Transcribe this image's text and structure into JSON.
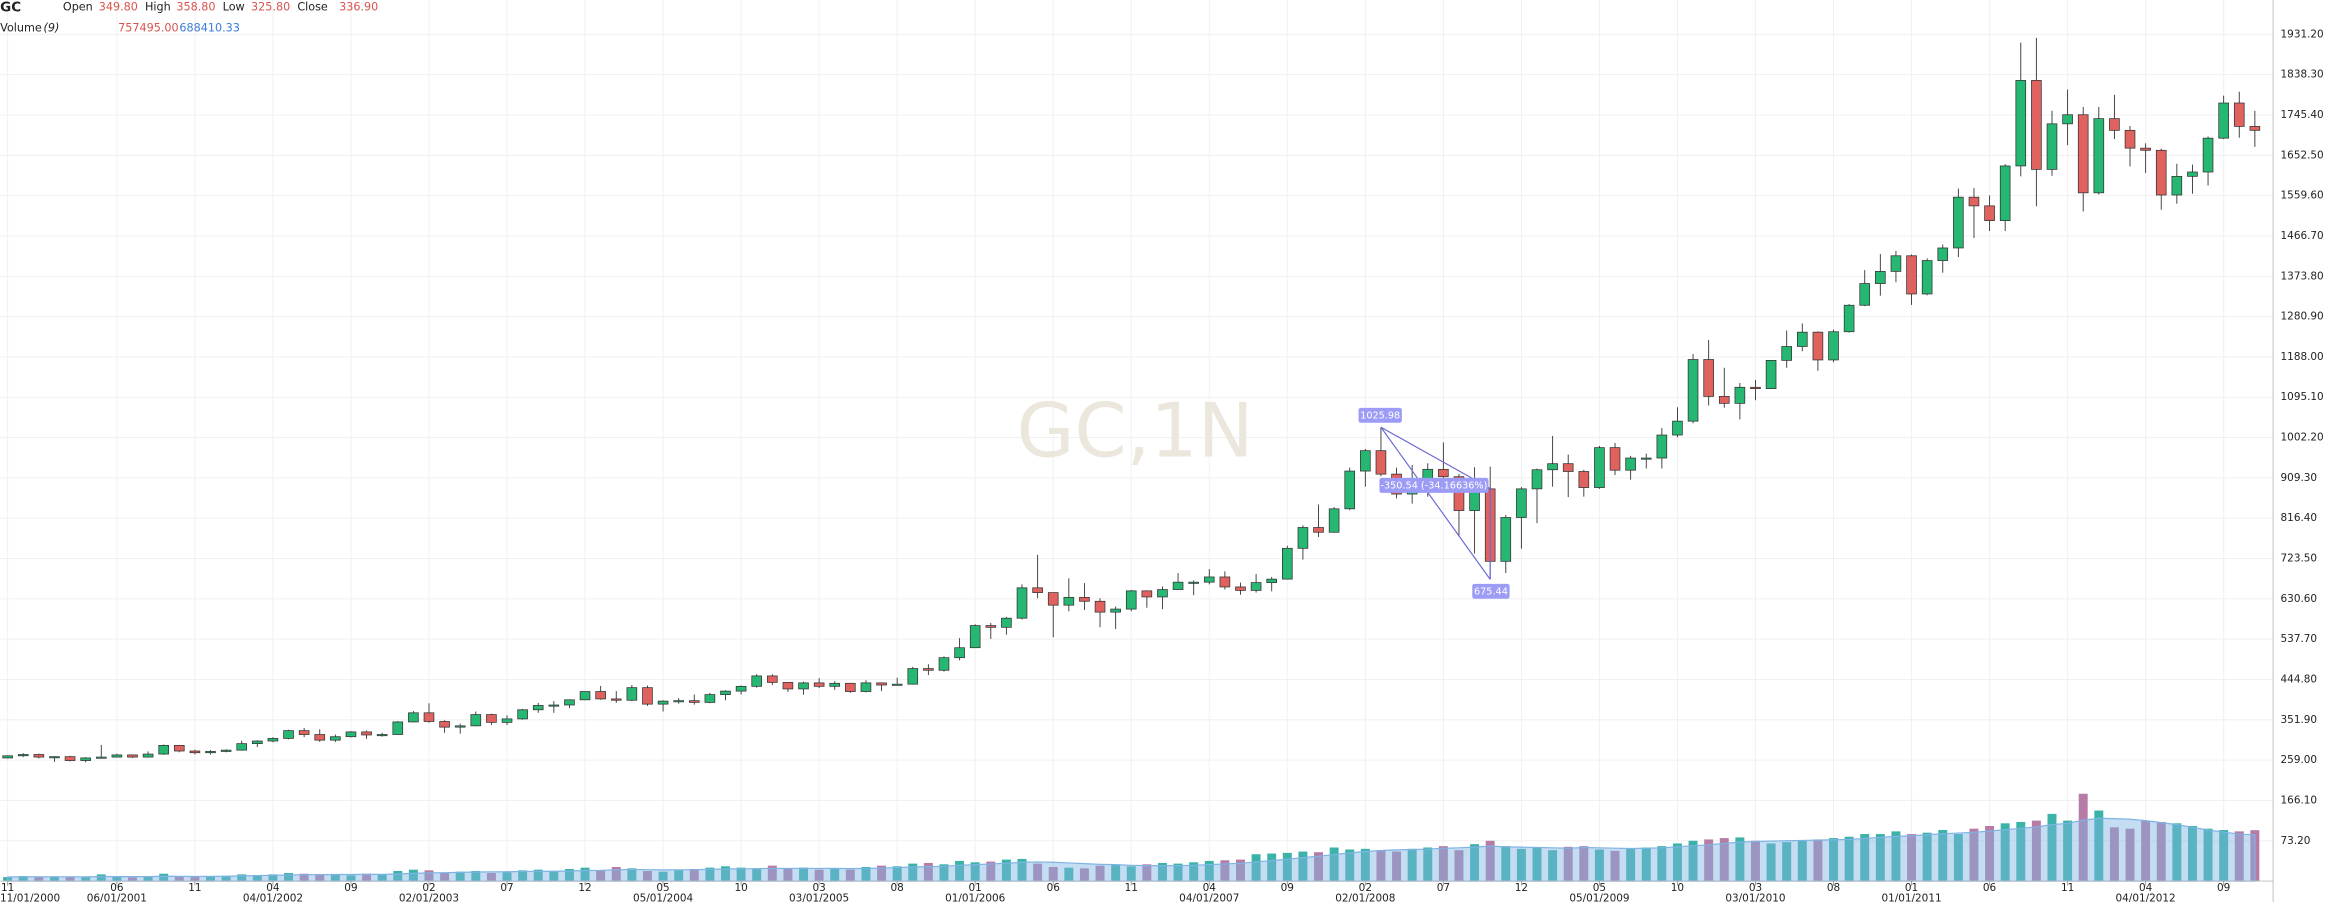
{
  "chart_data": {
    "type": "candlestick",
    "title": "GC",
    "watermark": "GC,1N",
    "legend": [
      {
        "label": "Open",
        "value": "349.80"
      },
      {
        "label": "High",
        "value": "358.80"
      },
      {
        "label": "Low",
        "value": "325.80"
      },
      {
        "label": "Close",
        "value": "336.90"
      }
    ],
    "up_color": "#26b772",
    "down_color": "#e0625f",
    "legend_value_color": "#d9534f",
    "open": [
      264,
      269,
      272,
      266,
      267,
      258,
      264,
      266,
      271,
      266,
      273,
      293,
      280,
      276,
      279,
      282,
      297,
      303,
      309,
      327,
      318,
      305,
      313,
      324,
      317,
      318,
      347,
      368,
      348,
      335,
      338,
      364,
      346,
      354,
      375,
      385,
      386,
      398,
      417,
      400,
      397,
      426,
      388,
      395,
      396,
      392,
      410,
      418,
      429,
      453,
      438,
      423,
      437,
      429,
      436,
      417,
      437,
      432,
      434,
      470,
      466,
      495,
      518,
      569,
      565,
      586,
      656,
      645,
      616,
      634,
      625,
      600,
      607,
      649,
      635,
      652,
      669,
      669,
      681,
      658,
      650,
      668,
      676,
      747,
      795,
      784,
      838,
      925,
      972,
      918,
      872,
      889,
      929,
      912,
      834,
      884,
      717,
      818,
      884,
      928,
      942,
      924,
      887,
      979,
      927,
      955,
      955,
      1008,
      1040,
      1182,
      1097,
      1081,
      1118,
      1115,
      1180,
      1212,
      1245,
      1181,
      1246,
      1307,
      1357,
      1385,
      1421,
      1333,
      1410,
      1439,
      1556,
      1536,
      1502,
      1628,
      1825,
      1620,
      1725,
      1746,
      1566,
      1737,
      1710,
      1669,
      1664,
      1561,
      1604,
      1614,
      1692,
      1773,
      1719
    ],
    "high": [
      270,
      275,
      274,
      268,
      269,
      266,
      294,
      274,
      272,
      279,
      295,
      294,
      283,
      282,
      284,
      304,
      305,
      312,
      329,
      333,
      330,
      318,
      326,
      327,
      322,
      349,
      372,
      390,
      351,
      343,
      371,
      366,
      362,
      377,
      391,
      395,
      399,
      417,
      430,
      418,
      432,
      431,
      397,
      402,
      410,
      414,
      420,
      431,
      457,
      457,
      439,
      440,
      448,
      441,
      437,
      443,
      438,
      449,
      474,
      480,
      498,
      540,
      572,
      575,
      589,
      664,
      732,
      645,
      678,
      667,
      632,
      613,
      651,
      650,
      659,
      690,
      673,
      699,
      694,
      668,
      688,
      681,
      753,
      800,
      848,
      842,
      933,
      976,
      1026,
      933,
      939,
      943,
      991,
      918,
      934,
      935,
      824,
      888,
      931,
      1006,
      963,
      928,
      983,
      990,
      960,
      965,
      1024,
      1072,
      1195,
      1227,
      1163,
      1128,
      1135,
      1180,
      1249,
      1265,
      1247,
      1251,
      1310,
      1388,
      1425,
      1432,
      1424,
      1415,
      1447,
      1576,
      1577,
      1560,
      1632,
      1912,
      1923,
      1755,
      1804,
      1764,
      1764,
      1792,
      1720,
      1680,
      1668,
      1633,
      1631,
      1696,
      1790,
      1799,
      1755
    ],
    "low": [
      263,
      266,
      263,
      255,
      256,
      254,
      263,
      265,
      264,
      265,
      271,
      277,
      272,
      272,
      277,
      281,
      289,
      300,
      307,
      312,
      301,
      301,
      311,
      308,
      313,
      317,
      346,
      345,
      322,
      320,
      337,
      340,
      340,
      352,
      368,
      368,
      379,
      397,
      398,
      391,
      395,
      384,
      371,
      389,
      387,
      390,
      397,
      410,
      426,
      432,
      416,
      410,
      425,
      421,
      414,
      415,
      418,
      431,
      433,
      455,
      463,
      489,
      518,
      538,
      548,
      583,
      632,
      542,
      602,
      605,
      565,
      561,
      602,
      610,
      607,
      651,
      639,
      664,
      652,
      640,
      645,
      648,
      675,
      721,
      773,
      783,
      835,
      889,
      913,
      862,
      850,
      866,
      900,
      775,
      735,
      675.44,
      690,
      746,
      805,
      889,
      865,
      866,
      884,
      916,
      905,
      931,
      931,
      1003,
      1035,
      1076,
      1071,
      1044,
      1088,
      1114,
      1163,
      1201,
      1156,
      1176,
      1244,
      1305,
      1329,
      1360,
      1308,
      1330,
      1382,
      1418,
      1462,
      1478,
      1478,
      1604,
      1535,
      1605,
      1676,
      1523,
      1562,
      1690,
      1627,
      1612,
      1527,
      1541,
      1564,
      1583,
      1690,
      1693,
      1672
    ],
    "close": [
      269,
      272,
      266,
      267,
      258,
      264,
      266,
      271,
      266,
      273,
      293,
      280,
      276,
      279,
      282,
      297,
      303,
      309,
      327,
      318,
      305,
      313,
      324,
      317,
      318,
      347,
      368,
      348,
      335,
      338,
      364,
      346,
      354,
      375,
      385,
      386,
      398,
      417,
      400,
      397,
      426,
      388,
      395,
      396,
      392,
      410,
      418,
      429,
      453,
      438,
      423,
      437,
      429,
      436,
      417,
      437,
      432,
      434,
      470,
      466,
      495,
      518,
      569,
      565,
      586,
      656,
      645,
      616,
      634,
      625,
      600,
      607,
      649,
      635,
      652,
      669,
      669,
      681,
      658,
      650,
      668,
      676,
      747,
      795,
      784,
      838,
      925,
      972,
      918,
      872,
      889,
      929,
      912,
      834,
      884,
      717,
      818,
      884,
      928,
      942,
      924,
      887,
      979,
      927,
      955,
      955,
      1008,
      1040,
      1182,
      1097,
      1081,
      1118,
      1115,
      1180,
      1212,
      1245,
      1181,
      1246,
      1307,
      1357,
      1385,
      1421,
      1333,
      1410,
      1439,
      1556,
      1536,
      1502,
      1628,
      1825,
      1620,
      1725,
      1746,
      1566,
      1737,
      1710,
      1669,
      1664,
      1561,
      1604,
      1614,
      1692,
      1773,
      1719,
      1710
    ],
    "ylim": [
      -19.7,
      2010.3
    ],
    "yticks": [
      {
        "value": 73.2,
        "label": "73.20"
      },
      {
        "value": 166.1,
        "label": "166.10"
      },
      {
        "value": 259,
        "label": "259.00"
      },
      {
        "value": 351.9,
        "label": "351.90"
      },
      {
        "value": 444.8,
        "label": "444.80"
      },
      {
        "value": 537.7,
        "label": "537.70"
      },
      {
        "value": 630.6,
        "label": "630.60"
      },
      {
        "value": 723.5,
        "label": "723.50"
      },
      {
        "value": 816.4,
        "label": "816.40"
      },
      {
        "value": 909.3,
        "label": "909.30"
      },
      {
        "value": 1002.2,
        "label": "1002.20"
      },
      {
        "value": 1095.1,
        "label": "1095.10"
      },
      {
        "value": 1188,
        "label": "1188.00"
      },
      {
        "value": 1280.9,
        "label": "1280.90"
      },
      {
        "value": 1373.8,
        "label": "1373.80"
      },
      {
        "value": 1466.7,
        "label": "1466.70"
      },
      {
        "value": 1559.6,
        "label": "1559.60"
      },
      {
        "value": 1652.5,
        "label": "1652.50"
      },
      {
        "value": 1745.4,
        "label": "1745.40"
      },
      {
        "value": 1838.3,
        "label": "1838.30"
      },
      {
        "value": 1931.2,
        "label": "1931.20"
      }
    ],
    "xticks": [
      {
        "value": 0,
        "label": "11"
      },
      {
        "value": 7,
        "label": "06"
      },
      {
        "value": 12,
        "label": "11"
      },
      {
        "value": 17,
        "label": "04"
      },
      {
        "value": 22,
        "label": "09"
      },
      {
        "value": 27,
        "label": "02"
      },
      {
        "value": 32,
        "label": "07"
      },
      {
        "value": 37,
        "label": "12"
      },
      {
        "value": 42,
        "label": "05"
      },
      {
        "value": 47,
        "label": "10"
      },
      {
        "value": 52,
        "label": "03"
      },
      {
        "value": 57,
        "label": "08"
      },
      {
        "value": 62,
        "label": "01"
      },
      {
        "value": 67,
        "label": "06"
      },
      {
        "value": 72,
        "label": "11"
      },
      {
        "value": 77,
        "label": "04"
      },
      {
        "value": 82,
        "label": "09"
      },
      {
        "value": 87,
        "label": "02"
      },
      {
        "value": 92,
        "label": "07"
      },
      {
        "value": 97,
        "label": "12"
      },
      {
        "value": 102,
        "label": "05"
      },
      {
        "value": 107,
        "label": "10"
      },
      {
        "value": 112,
        "label": "03"
      },
      {
        "value": 117,
        "label": "08"
      },
      {
        "value": 122,
        "label": "01"
      },
      {
        "value": 127,
        "label": "06"
      },
      {
        "value": 132,
        "label": "11"
      },
      {
        "value": 137,
        "label": "04"
      },
      {
        "value": 142,
        "label": "09"
      }
    ],
    "xtick_dates": [
      {
        "value": 0,
        "label": "11/01/2000"
      },
      {
        "value": 7,
        "label": "06/01/2001"
      },
      {
        "value": 17,
        "label": "04/01/2002"
      },
      {
        "value": 27,
        "label": "02/01/2003"
      },
      {
        "value": 42,
        "label": "05/01/2004"
      },
      {
        "value": 52,
        "label": "03/01/2005"
      },
      {
        "value": 62,
        "label": "01/01/2006"
      },
      {
        "value": 77,
        "label": "04/01/2007"
      },
      {
        "value": 87,
        "label": "02/01/2008"
      },
      {
        "value": 102,
        "label": "05/01/2009"
      },
      {
        "value": 112,
        "label": "03/01/2010"
      },
      {
        "value": 122,
        "label": "01/01/2011"
      },
      {
        "value": 137,
        "label": "04/01/2012"
      }
    ],
    "grid": true,
    "annotation": {
      "high": 1025.98,
      "low": 675.44,
      "change": "-350.54 (-34.16636%)",
      "color": "#9c9cf7"
    },
    "volume": {
      "name": "Volume",
      "period": "(9)",
      "last_value": "757495.00",
      "ma_last": "688410.33",
      "last_color": "#d9534f",
      "ma_text_color": "#3b7dd8",
      "up_color": "#3bb3a9",
      "down_color": "#b77ca6",
      "ma_color": "#7fb3e3",
      "ylim": [
        0,
        2000000
      ],
      "values": [
        60000,
        75000,
        55000,
        70000,
        60000,
        65000,
        100000,
        60000,
        55000,
        70000,
        110000,
        65000,
        60000,
        70000,
        80000,
        100000,
        90000,
        100000,
        120000,
        110000,
        90000,
        95000,
        85000,
        110000,
        100000,
        150000,
        170000,
        160000,
        120000,
        140000,
        150000,
        120000,
        130000,
        160000,
        170000,
        150000,
        180000,
        200000,
        160000,
        210000,
        190000,
        150000,
        140000,
        160000,
        180000,
        200000,
        220000,
        200000,
        190000,
        230000,
        180000,
        200000,
        170000,
        190000,
        170000,
        210000,
        230000,
        220000,
        260000,
        270000,
        250000,
        300000,
        280000,
        290000,
        320000,
        330000,
        260000,
        210000,
        200000,
        190000,
        230000,
        240000,
        220000,
        250000,
        270000,
        260000,
        280000,
        300000,
        310000,
        320000,
        400000,
        410000,
        420000,
        440000,
        430000,
        500000,
        470000,
        480000,
        460000,
        440000,
        480000,
        500000,
        520000,
        460000,
        550000,
        600000,
        520000,
        480000,
        500000,
        460000,
        510000,
        520000,
        470000,
        450000,
        480000,
        500000,
        520000,
        560000,
        600000,
        620000,
        640000,
        650000,
        600000,
        560000,
        580000,
        600000,
        620000,
        640000,
        660000,
        700000,
        700000,
        740000,
        700000,
        720000,
        760000,
        700000,
        780000,
        820000,
        860000,
        880000,
        900000,
        1000000,
        900000,
        1300000,
        1050000,
        800000,
        780000,
        900000,
        880000,
        860000,
        820000,
        780000,
        760000,
        740000,
        757495
      ],
      "ma_values": [
        62000,
        65000,
        63000,
        64000,
        63000,
        64000,
        68000,
        67000,
        66000,
        67000,
        72000,
        70000,
        69000,
        70000,
        72000,
        78000,
        82000,
        86000,
        92000,
        95000,
        96000,
        98000,
        98000,
        100000,
        100000,
        106000,
        115000,
        122000,
        125000,
        130000,
        135000,
        137000,
        139000,
        143000,
        145000,
        146000,
        150000,
        158000,
        160000,
        168000,
        172000,
        170000,
        167000,
        168000,
        170000,
        175000,
        180000,
        183000,
        185000,
        190000,
        188000,
        190000,
        188000,
        190000,
        186000,
        188000,
        195000,
        200000,
        210000,
        215000,
        220000,
        235000,
        245000,
        255000,
        265000,
        280000,
        285000,
        280000,
        270000,
        260000,
        250000,
        245000,
        235000,
        230000,
        228000,
        230000,
        235000,
        245000,
        255000,
        265000,
        285000,
        305000,
        325000,
        350000,
        370000,
        395000,
        420000,
        440000,
        455000,
        465000,
        470000,
        475000,
        490000,
        495000,
        505000,
        520000,
        510000,
        505000,
        500000,
        495000,
        490000,
        500000,
        495000,
        490000,
        485000,
        490000,
        495000,
        510000,
        525000,
        540000,
        560000,
        580000,
        590000,
        595000,
        600000,
        605000,
        610000,
        615000,
        620000,
        635000,
        650000,
        665000,
        675000,
        690000,
        705000,
        715000,
        725000,
        745000,
        765000,
        785000,
        805000,
        840000,
        860000,
        905000,
        935000,
        930000,
        920000,
        900000,
        870000,
        840000,
        800000,
        760000,
        730000,
        700000,
        688410.33
      ]
    }
  }
}
